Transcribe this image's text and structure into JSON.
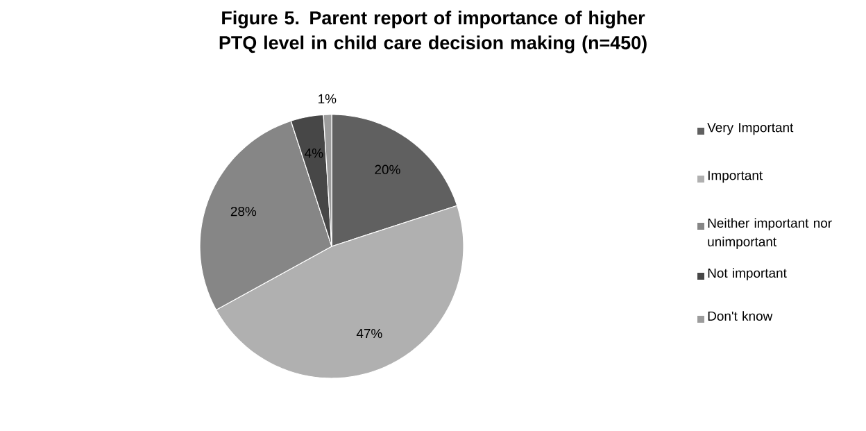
{
  "chart_data": {
    "type": "pie",
    "title": "Figure 5. Parent report of importance of higher PTQ level in child care decision making (n=450)",
    "categories": [
      "Very Important",
      "Important",
      "Neither important nor unimportant",
      "Not important",
      "Don't know"
    ],
    "values": [
      20,
      47,
      28,
      4,
      1
    ],
    "colors": [
      "#606060",
      "#b0b0b0",
      "#868686",
      "#474747",
      "#9c9c9c"
    ],
    "value_labels": [
      "20%",
      "47%",
      "28%",
      "4%",
      "1%"
    ],
    "legend": "right"
  }
}
